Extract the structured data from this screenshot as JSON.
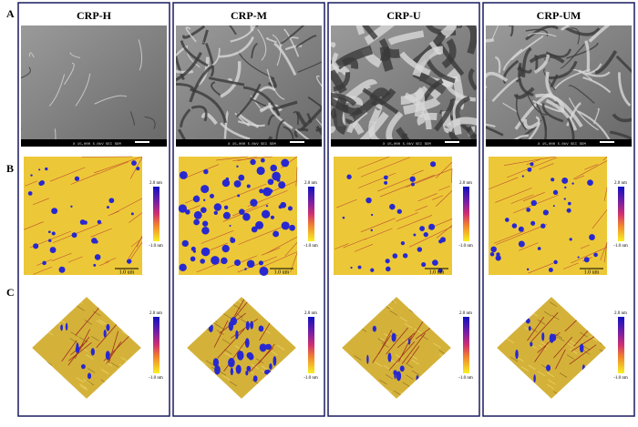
{
  "row_labels": [
    "A",
    "B",
    "C"
  ],
  "panels": [
    {
      "title": "CRP-H",
      "sem_bar": "X 15,000  5.0kV  SEI  SEM",
      "afm_scale": "1.0 um",
      "colorbar_max": "2.0 nm",
      "colorbar_min": "-1.0 nm"
    },
    {
      "title": "CRP-M",
      "sem_bar": "X 15,000  5.0kV  SEI  SEM",
      "afm_scale": "1.0 um",
      "colorbar_max": "2.0 nm",
      "colorbar_min": "-1.0 nm"
    },
    {
      "title": "CRP-U",
      "sem_bar": "X 15,000  5.0kV  SEI  SEM",
      "afm_scale": "1.0 um",
      "colorbar_max": "2.0 nm",
      "colorbar_min": "-1.0 nm"
    },
    {
      "title": "CRP-UM",
      "sem_bar": "X 15,000  5.0kV  SEI  SEM",
      "afm_scale": "1.0 um",
      "colorbar_max": "2.0 nm",
      "colorbar_min": "-1.0 nm"
    }
  ]
}
